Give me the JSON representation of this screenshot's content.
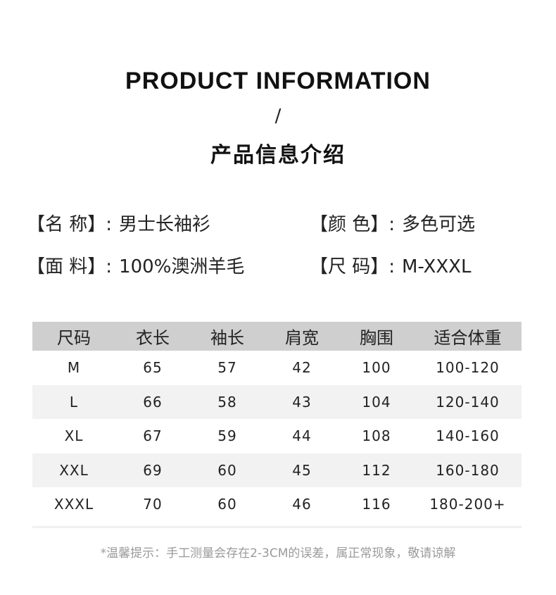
{
  "header": {
    "title_en": "PRODUCT INFORMATION",
    "separator": "/",
    "title_cn": "产品信息介绍"
  },
  "info": [
    {
      "label": "【名 称】:",
      "value": "男士长袖衫"
    },
    {
      "label": "【颜 色】:",
      "value": "多色可选"
    },
    {
      "label": "【面 料】:",
      "value": "100%澳洲羊毛"
    },
    {
      "label": "【尺 码】:",
      "value": "M-XXXL"
    }
  ],
  "table": {
    "columns": [
      "尺码",
      "衣长",
      "袖长",
      "肩宽",
      "胸围",
      "适合体重"
    ],
    "rows": [
      [
        "M",
        "65",
        "57",
        "42",
        "100",
        "100-120"
      ],
      [
        "L",
        "66",
        "58",
        "43",
        "104",
        "120-140"
      ],
      [
        "XL",
        "67",
        "59",
        "44",
        "108",
        "140-160"
      ],
      [
        "XXL",
        "69",
        "60",
        "45",
        "112",
        "160-180"
      ],
      [
        "XXXL",
        "70",
        "60",
        "46",
        "116",
        "180-200+"
      ]
    ]
  },
  "note": "*温馨提示：手工测量会存在2-3CM的误差，属正常现象，敬请谅解",
  "colors": {
    "header_bg": "#cfcfcf",
    "alt_row_bg": "#f2f2f2",
    "note_text": "#9a9a9a"
  }
}
